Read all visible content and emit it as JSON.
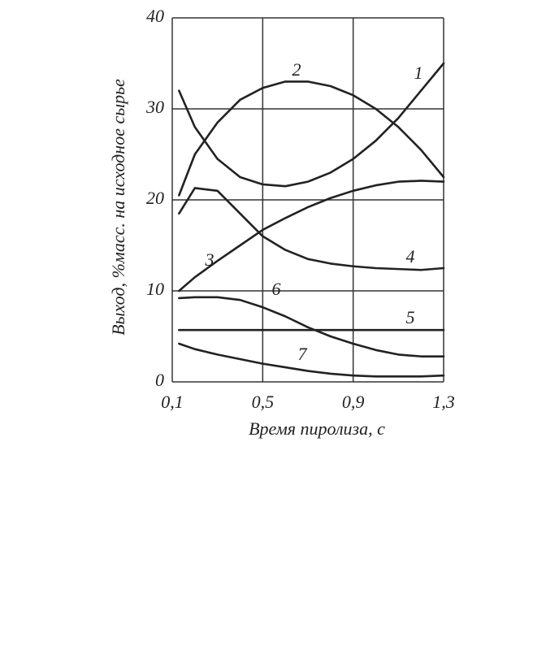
{
  "chart_data": {
    "type": "line",
    "x_label": "Время пиролиза, с",
    "y_label": "Выход, %масс. на исходное сырье",
    "x": [
      0.13,
      0.2,
      0.3,
      0.4,
      0.5,
      0.6,
      0.7,
      0.8,
      0.9,
      1.0,
      1.1,
      1.2,
      1.3
    ],
    "series": [
      {
        "name": "1",
        "color": "#222222",
        "values": [
          32,
          28,
          24.5,
          22.5,
          21.7,
          21.5,
          22,
          23,
          24.5,
          26.5,
          29,
          32,
          35
        ]
      },
      {
        "name": "2",
        "color": "#222222",
        "values": [
          20.5,
          25,
          28.5,
          31,
          32.3,
          33,
          33,
          32.5,
          31.5,
          30,
          28,
          25.5,
          22.5
        ]
      },
      {
        "name": "3",
        "color": "#222222",
        "values": [
          10,
          11.5,
          13.3,
          15,
          16.7,
          18,
          19.2,
          20.2,
          21,
          21.6,
          22,
          22.1,
          22
        ]
      },
      {
        "name": "4",
        "color": "#222222",
        "values": [
          18.5,
          21.3,
          21,
          18.5,
          16,
          14.5,
          13.5,
          13,
          12.7,
          12.5,
          12.4,
          12.3,
          12.5
        ]
      },
      {
        "name": "5",
        "color": "#222222",
        "values": [
          5.7,
          5.7,
          5.7,
          5.7,
          5.7,
          5.7,
          5.7,
          5.7,
          5.7,
          5.7,
          5.7,
          5.7,
          5.7
        ]
      },
      {
        "name": "6",
        "color": "#222222",
        "values": [
          9.2,
          9.3,
          9.3,
          9,
          8.2,
          7.2,
          6,
          5,
          4.2,
          3.5,
          3,
          2.8,
          2.8
        ]
      },
      {
        "name": "7",
        "color": "#222222",
        "values": [
          4.2,
          3.6,
          3,
          2.5,
          2,
          1.6,
          1.2,
          0.9,
          0.7,
          0.6,
          0.6,
          0.6,
          0.7
        ]
      }
    ],
    "xlim": [
      0.1,
      1.3
    ],
    "xticks": [
      {
        "value": 0.1,
        "label": "0,1"
      },
      {
        "value": 0.5,
        "label": "0,5"
      },
      {
        "value": 0.9,
        "label": "0,9"
      },
      {
        "value": 1.3,
        "label": "1,3"
      }
    ],
    "ylim": [
      0,
      40
    ],
    "yticks": [
      0,
      10,
      20,
      30,
      40
    ],
    "grid": true
  }
}
